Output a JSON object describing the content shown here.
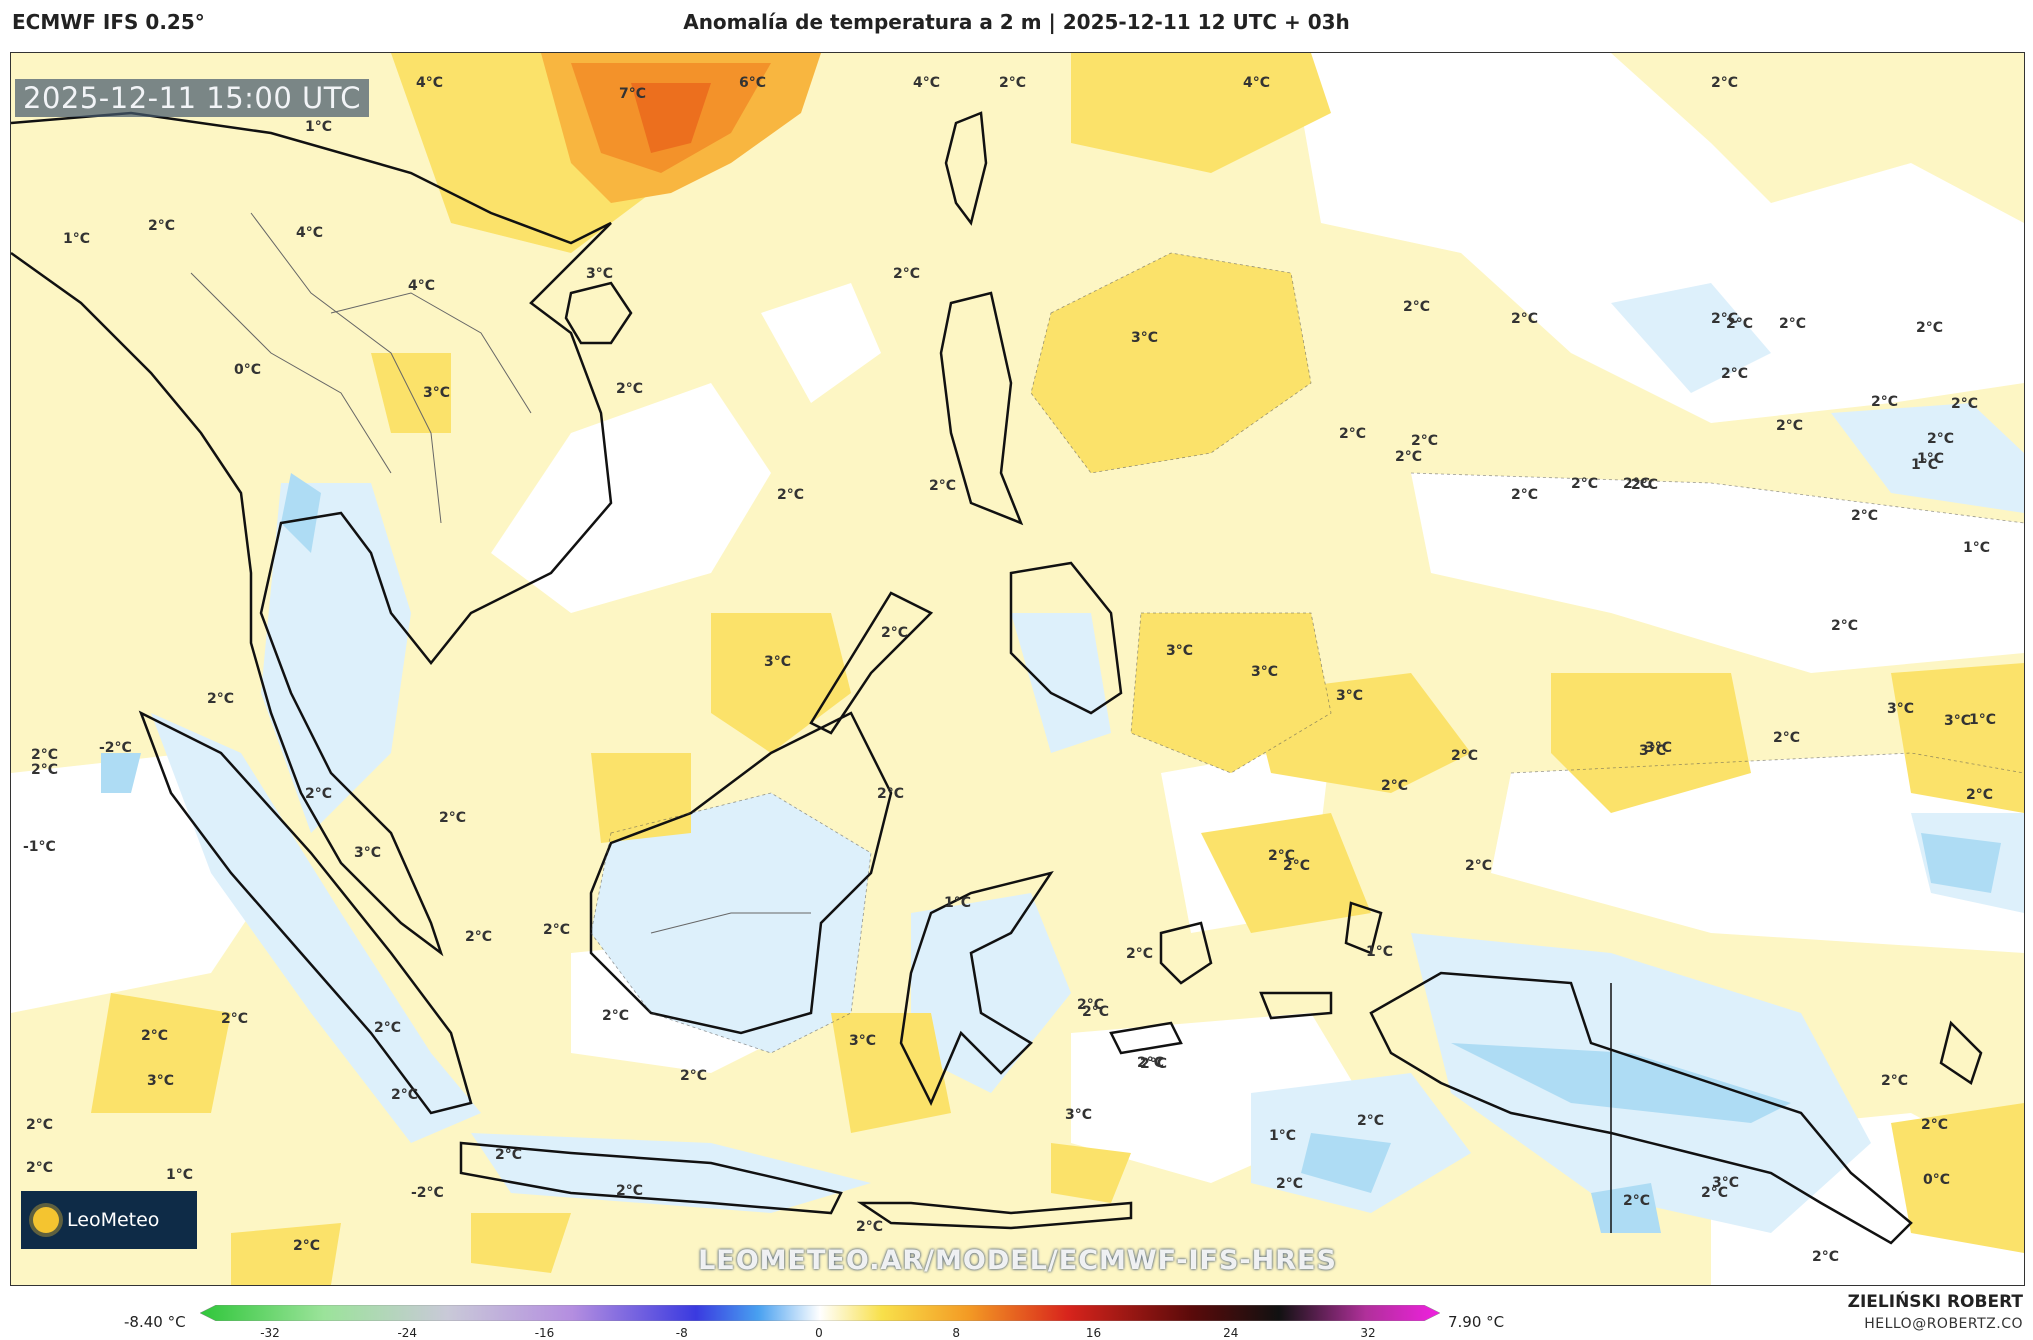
{
  "header": {
    "model": "ECMWF IFS 0.25°",
    "title": "Anomalía de temperatura a 2 m | 2025-12-11 12 UTC + 03h"
  },
  "map": {
    "valid_time": "2025-12-11 15:00 UTC",
    "watermark": "LEOMETEO.AR/MODEL/ECMWF-IFS-HRES",
    "logo_text": "LeoMeteo",
    "colors": {
      "land_outline": "#111111",
      "warm_light": "#fdf3b5",
      "warm_mid": "#fbe26a",
      "warm_strong": "#f8d232",
      "hot": "#f39c28",
      "cool": "#d8eefa",
      "cold": "#a8dcf5"
    },
    "labels": [
      {
        "text": "4°C"
      },
      {
        "text": "7°C"
      },
      {
        "text": "6°C"
      },
      {
        "text": "4°C"
      },
      {
        "text": "2°C"
      },
      {
        "text": "4°C"
      },
      {
        "text": "2°C"
      },
      {
        "text": "1°C"
      },
      {
        "text": "2°C"
      },
      {
        "text": "4°C"
      },
      {
        "text": "1°C"
      },
      {
        "text": "3°C"
      },
      {
        "text": "2°C"
      },
      {
        "text": "4°C"
      },
      {
        "text": "2°C"
      },
      {
        "text": "0°C"
      },
      {
        "text": "3°C"
      },
      {
        "text": "2°C"
      },
      {
        "text": "2°C"
      },
      {
        "text": "3°C"
      },
      {
        "text": "2°C"
      },
      {
        "text": "2°C"
      },
      {
        "text": "2°C"
      },
      {
        "text": "2°C"
      },
      {
        "text": "2°C"
      },
      {
        "text": "2°C"
      },
      {
        "text": "2°C"
      },
      {
        "text": "2°C"
      },
      {
        "text": "2°C"
      },
      {
        "text": "2°C"
      },
      {
        "text": "1°C"
      },
      {
        "text": "2°C"
      },
      {
        "text": "2°C"
      },
      {
        "text": "2°C"
      },
      {
        "text": "2°C"
      },
      {
        "text": "2°C"
      },
      {
        "text": "2°C"
      },
      {
        "text": "1°C"
      },
      {
        "text": "2°C"
      },
      {
        "text": "2°C"
      },
      {
        "text": "2°C"
      },
      {
        "text": "1°C"
      },
      {
        "text": "2°C"
      },
      {
        "text": "3°C"
      },
      {
        "text": "2°C"
      },
      {
        "text": "3°C"
      },
      {
        "text": "3°C"
      },
      {
        "text": "3°C"
      },
      {
        "text": "3°C"
      },
      {
        "text": "3°C"
      },
      {
        "text": "2°C"
      },
      {
        "text": "2°C"
      },
      {
        "text": "3°C"
      },
      {
        "text": "2°C"
      },
      {
        "text": "1°C"
      },
      {
        "text": "2°C"
      },
      {
        "text": "-2°C"
      },
      {
        "text": "2°C"
      },
      {
        "text": "3°C"
      },
      {
        "text": "2°C"
      },
      {
        "text": "2°C"
      },
      {
        "text": "-1°C"
      },
      {
        "text": "3°C"
      },
      {
        "text": "2°C"
      },
      {
        "text": "2°C"
      },
      {
        "text": "2°C"
      },
      {
        "text": "2°C"
      },
      {
        "text": "1°C"
      },
      {
        "text": "2°C"
      },
      {
        "text": "2°C"
      },
      {
        "text": "2°C"
      },
      {
        "text": "2°C"
      },
      {
        "text": "2°C"
      },
      {
        "text": "1°C"
      },
      {
        "text": "2°C"
      },
      {
        "text": "3°C"
      },
      {
        "text": "2°C"
      },
      {
        "text": "2°C"
      },
      {
        "text": "2°C"
      },
      {
        "text": "2°C"
      },
      {
        "text": "2°C"
      },
      {
        "text": "2°C"
      },
      {
        "text": "3°C"
      },
      {
        "text": "2°C"
      },
      {
        "text": "2°C"
      },
      {
        "text": "3°C"
      },
      {
        "text": "2°C"
      },
      {
        "text": "1°C"
      },
      {
        "text": "2°C"
      },
      {
        "text": "2°C"
      },
      {
        "text": "2°C"
      },
      {
        "text": "2°C"
      },
      {
        "text": "2°C"
      },
      {
        "text": "-2°C"
      },
      {
        "text": "0°C"
      },
      {
        "text": "2°C"
      },
      {
        "text": "3°C"
      },
      {
        "text": "2°C"
      },
      {
        "text": "1°C"
      },
      {
        "text": "2°C"
      },
      {
        "text": "2°C"
      },
      {
        "text": "2°C"
      },
      {
        "text": "2°C"
      },
      {
        "text": "2°C"
      },
      {
        "text": "2°C"
      }
    ]
  },
  "colorbar": {
    "min_label": "-8.40 °C",
    "max_label": "7.90 °C",
    "ticks": [
      "-32",
      "-24",
      "-16",
      "-8",
      "0",
      "8",
      "16",
      "24",
      "32"
    ]
  },
  "footer": {
    "author": "ZIELIŃSKI ROBERT",
    "email": "HELLO@ROBERTZ.CO"
  }
}
